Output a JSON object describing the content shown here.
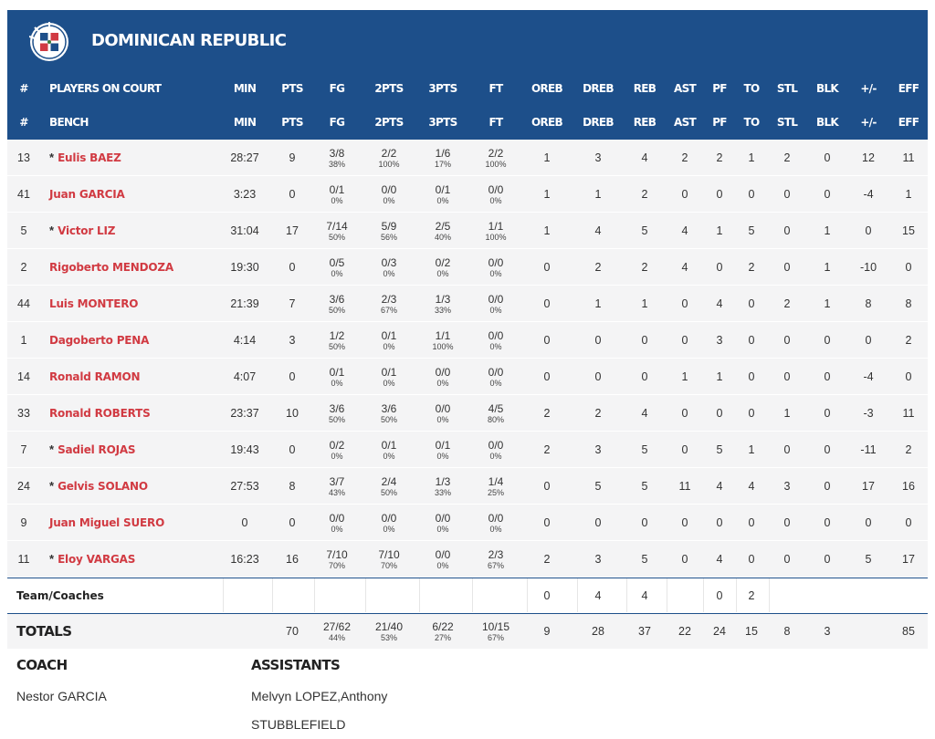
{
  "team": {
    "name": "DOMINICAN REPUBLIC",
    "logo_icon": "dominican-republic-flag-logo-icon",
    "colors": {
      "header_bg": "#1d4f8a",
      "player_link": "#d13a42",
      "row_bg": "#f4f4f5"
    }
  },
  "headers_oncourt": [
    "#",
    "PLAYERS ON COURT",
    "MIN",
    "PTS",
    "FG",
    "2PTS",
    "3PTS",
    "FT",
    "OREB",
    "DREB",
    "REB",
    "AST",
    "PF",
    "TO",
    "STL",
    "BLK",
    "+/-",
    "EFF"
  ],
  "headers_bench": [
    "#",
    "BENCH",
    "MIN",
    "PTS",
    "FG",
    "2PTS",
    "3PTS",
    "FT",
    "OREB",
    "DREB",
    "REB",
    "AST",
    "PF",
    "TO",
    "STL",
    "BLK",
    "+/-",
    "EFF"
  ],
  "players": [
    {
      "num": "13",
      "starter": true,
      "name": "Eulis BAEZ",
      "min": "28:27",
      "pts": "9",
      "fg": "3/8",
      "fg_pct": "38%",
      "two": "2/2",
      "two_pct": "100%",
      "three": "1/6",
      "three_pct": "17%",
      "ft": "2/2",
      "ft_pct": "100%",
      "oreb": "1",
      "dreb": "3",
      "reb": "4",
      "ast": "2",
      "pf": "2",
      "to": "1",
      "stl": "2",
      "blk": "0",
      "pm": "12",
      "eff": "11"
    },
    {
      "num": "41",
      "starter": false,
      "name": "Juan GARCIA",
      "min": "3:23",
      "pts": "0",
      "fg": "0/1",
      "fg_pct": "0%",
      "two": "0/0",
      "two_pct": "0%",
      "three": "0/1",
      "three_pct": "0%",
      "ft": "0/0",
      "ft_pct": "0%",
      "oreb": "1",
      "dreb": "1",
      "reb": "2",
      "ast": "0",
      "pf": "0",
      "to": "0",
      "stl": "0",
      "blk": "0",
      "pm": "-4",
      "eff": "1"
    },
    {
      "num": "5",
      "starter": true,
      "name": "Victor LIZ",
      "min": "31:04",
      "pts": "17",
      "fg": "7/14",
      "fg_pct": "50%",
      "two": "5/9",
      "two_pct": "56%",
      "three": "2/5",
      "three_pct": "40%",
      "ft": "1/1",
      "ft_pct": "100%",
      "oreb": "1",
      "dreb": "4",
      "reb": "5",
      "ast": "4",
      "pf": "1",
      "to": "5",
      "stl": "0",
      "blk": "1",
      "pm": "0",
      "eff": "15"
    },
    {
      "num": "2",
      "starter": false,
      "name": "Rigoberto MENDOZA",
      "min": "19:30",
      "pts": "0",
      "fg": "0/5",
      "fg_pct": "0%",
      "two": "0/3",
      "two_pct": "0%",
      "three": "0/2",
      "three_pct": "0%",
      "ft": "0/0",
      "ft_pct": "0%",
      "oreb": "0",
      "dreb": "2",
      "reb": "2",
      "ast": "4",
      "pf": "0",
      "to": "2",
      "stl": "0",
      "blk": "1",
      "pm": "-10",
      "eff": "0"
    },
    {
      "num": "44",
      "starter": false,
      "name": "Luis MONTERO",
      "min": "21:39",
      "pts": "7",
      "fg": "3/6",
      "fg_pct": "50%",
      "two": "2/3",
      "two_pct": "67%",
      "three": "1/3",
      "three_pct": "33%",
      "ft": "0/0",
      "ft_pct": "0%",
      "oreb": "0",
      "dreb": "1",
      "reb": "1",
      "ast": "0",
      "pf": "4",
      "to": "0",
      "stl": "2",
      "blk": "1",
      "pm": "8",
      "eff": "8"
    },
    {
      "num": "1",
      "starter": false,
      "name": "Dagoberto PENA",
      "min": "4:14",
      "pts": "3",
      "fg": "1/2",
      "fg_pct": "50%",
      "two": "0/1",
      "two_pct": "0%",
      "three": "1/1",
      "three_pct": "100%",
      "ft": "0/0",
      "ft_pct": "0%",
      "oreb": "0",
      "dreb": "0",
      "reb": "0",
      "ast": "0",
      "pf": "3",
      "to": "0",
      "stl": "0",
      "blk": "0",
      "pm": "0",
      "eff": "2"
    },
    {
      "num": "14",
      "starter": false,
      "name": "Ronald RAMON",
      "min": "4:07",
      "pts": "0",
      "fg": "0/1",
      "fg_pct": "0%",
      "two": "0/1",
      "two_pct": "0%",
      "three": "0/0",
      "three_pct": "0%",
      "ft": "0/0",
      "ft_pct": "0%",
      "oreb": "0",
      "dreb": "0",
      "reb": "0",
      "ast": "1",
      "pf": "1",
      "to": "0",
      "stl": "0",
      "blk": "0",
      "pm": "-4",
      "eff": "0"
    },
    {
      "num": "33",
      "starter": false,
      "name": "Ronald ROBERTS",
      "min": "23:37",
      "pts": "10",
      "fg": "3/6",
      "fg_pct": "50%",
      "two": "3/6",
      "two_pct": "50%",
      "three": "0/0",
      "three_pct": "0%",
      "ft": "4/5",
      "ft_pct": "80%",
      "oreb": "2",
      "dreb": "2",
      "reb": "4",
      "ast": "0",
      "pf": "0",
      "to": "0",
      "stl": "1",
      "blk": "0",
      "pm": "-3",
      "eff": "11"
    },
    {
      "num": "7",
      "starter": true,
      "name": "Sadiel ROJAS",
      "min": "19:43",
      "pts": "0",
      "fg": "0/2",
      "fg_pct": "0%",
      "two": "0/1",
      "two_pct": "0%",
      "three": "0/1",
      "three_pct": "0%",
      "ft": "0/0",
      "ft_pct": "0%",
      "oreb": "2",
      "dreb": "3",
      "reb": "5",
      "ast": "0",
      "pf": "5",
      "to": "1",
      "stl": "0",
      "blk": "0",
      "pm": "-11",
      "eff": "2"
    },
    {
      "num": "24",
      "starter": true,
      "name": "Gelvis SOLANO",
      "min": "27:53",
      "pts": "8",
      "fg": "3/7",
      "fg_pct": "43%",
      "two": "2/4",
      "two_pct": "50%",
      "three": "1/3",
      "three_pct": "33%",
      "ft": "1/4",
      "ft_pct": "25%",
      "oreb": "0",
      "dreb": "5",
      "reb": "5",
      "ast": "11",
      "pf": "4",
      "to": "4",
      "stl": "3",
      "blk": "0",
      "pm": "17",
      "eff": "16"
    },
    {
      "num": "9",
      "starter": false,
      "name": "Juan Miguel SUERO",
      "min": "0",
      "pts": "0",
      "fg": "0/0",
      "fg_pct": "0%",
      "two": "0/0",
      "two_pct": "0%",
      "three": "0/0",
      "three_pct": "0%",
      "ft": "0/0",
      "ft_pct": "0%",
      "oreb": "0",
      "dreb": "0",
      "reb": "0",
      "ast": "0",
      "pf": "0",
      "to": "0",
      "stl": "0",
      "blk": "0",
      "pm": "0",
      "eff": "0"
    },
    {
      "num": "11",
      "starter": true,
      "name": "Eloy VARGAS",
      "min": "16:23",
      "pts": "16",
      "fg": "7/10",
      "fg_pct": "70%",
      "two": "7/10",
      "two_pct": "70%",
      "three": "0/0",
      "three_pct": "0%",
      "ft": "2/3",
      "ft_pct": "67%",
      "oreb": "2",
      "dreb": "3",
      "reb": "5",
      "ast": "0",
      "pf": "4",
      "to": "0",
      "stl": "0",
      "blk": "0",
      "pm": "5",
      "eff": "17"
    }
  ],
  "team_coaches": {
    "label": "Team/Coaches",
    "oreb": "0",
    "dreb": "4",
    "reb": "4",
    "pf": "0",
    "to": "2"
  },
  "totals": {
    "label": "TOTALS",
    "pts": "70",
    "fg": "27/62",
    "fg_pct": "44%",
    "two": "21/40",
    "two_pct": "53%",
    "three": "6/22",
    "three_pct": "27%",
    "ft": "10/15",
    "ft_pct": "67%",
    "oreb": "9",
    "dreb": "28",
    "reb": "37",
    "ast": "22",
    "pf": "24",
    "to": "15",
    "stl": "8",
    "blk": "3",
    "eff": "85"
  },
  "staff": {
    "coach_label": "COACH",
    "coach": "Nestor GARCIA",
    "assistants_label": "ASSISTANTS",
    "assistants_line1": "Melvyn LOPEZ,Anthony",
    "assistants_line2": "STUBBLEFIELD"
  }
}
